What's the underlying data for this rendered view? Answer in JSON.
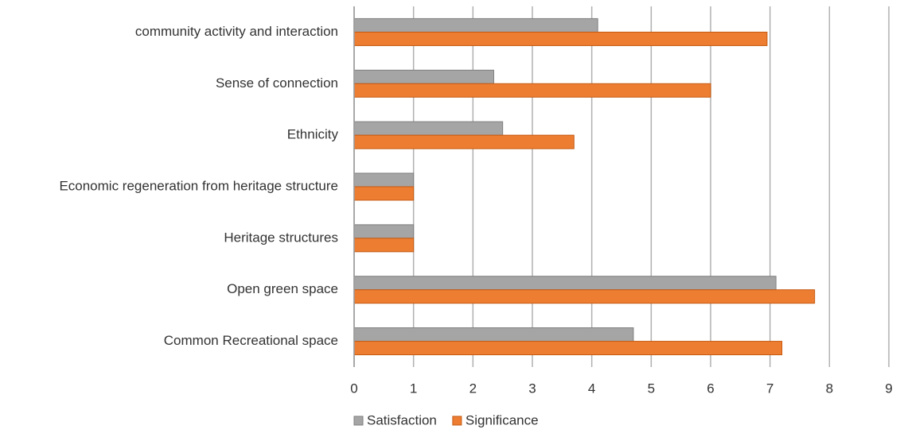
{
  "chart_data": {
    "type": "barh",
    "categories": [
      "community activity and interaction",
      "Sense of connection",
      "Ethnicity",
      "Economic regeneration from heritage structure",
      "Heritage structures",
      "Open green space",
      "Common Recreational space"
    ],
    "series": [
      {
        "name": "Satisfaction",
        "color": "#a5a5a5",
        "values": [
          4.1,
          2.35,
          2.5,
          1,
          1,
          7.1,
          4.7
        ]
      },
      {
        "name": "Significance",
        "color": "#ed7d31",
        "values": [
          6.95,
          6.0,
          3.7,
          1,
          1,
          7.75,
          7.2
        ]
      }
    ],
    "xlim": [
      0,
      9
    ],
    "xticks": [
      0,
      1,
      2,
      3,
      4,
      5,
      6,
      7,
      8,
      9
    ],
    "grid": true,
    "legend": "bottom"
  }
}
